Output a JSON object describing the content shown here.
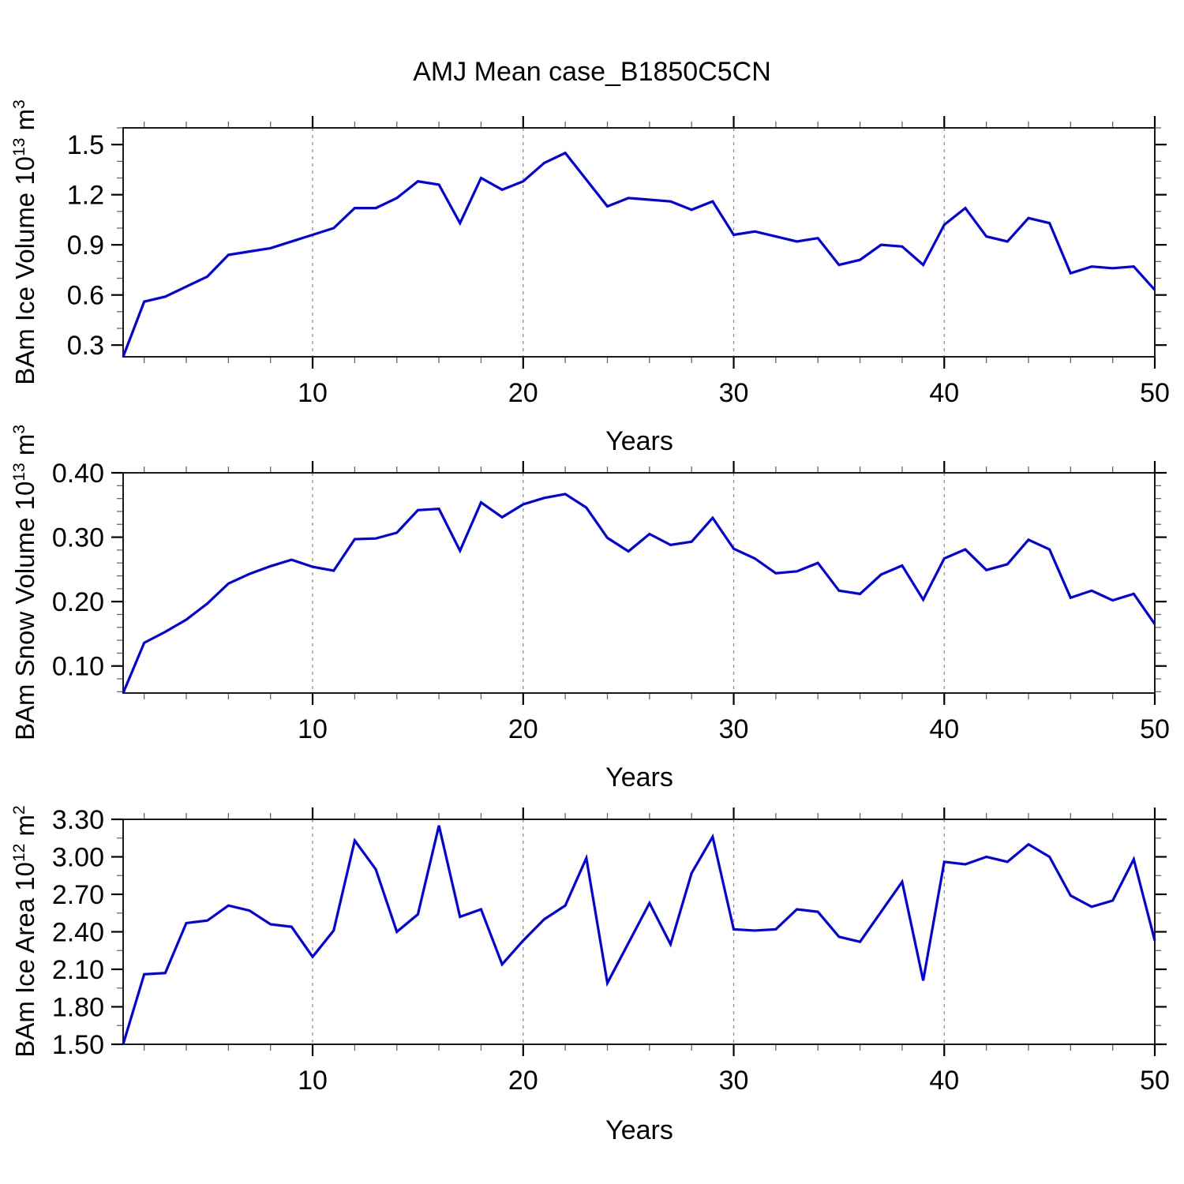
{
  "title": "AMJ Mean case_B1850C5CN",
  "line_color": "#0000e8",
  "grid_color": "#909090",
  "frame_color": "#1a1a1a",
  "chart_data": [
    {
      "type": "line",
      "name": "ice-volume",
      "ylabel": {
        "text1": "BAm Ice Volume 10",
        "sup1": "13",
        "text2": " m",
        "sup2": "3"
      },
      "ylabel_plain": "BAm Ice Volume 10^13 m^3",
      "xlabel": "Years",
      "xlim": [
        1,
        50
      ],
      "xticks": [
        10,
        20,
        30,
        40,
        50
      ],
      "xtick_labels": [
        "10",
        "20",
        "30",
        "40",
        "50"
      ],
      "x_minor_step": 2,
      "grid_x": [
        10,
        20,
        30,
        40
      ],
      "ylim": [
        0.23,
        1.6
      ],
      "yticks": [
        0.3,
        0.6,
        0.9,
        1.2,
        1.5
      ],
      "ytick_labels": [
        "0.3",
        "0.6",
        "0.9",
        "1.2",
        "1.5"
      ],
      "y_minor_step": 0.1,
      "x_years": "1 to 50, step 1",
      "values": [
        0.23,
        0.56,
        0.59,
        0.65,
        0.71,
        0.84,
        0.86,
        0.88,
        0.92,
        0.96,
        1.0,
        1.12,
        1.12,
        1.18,
        1.28,
        1.26,
        1.03,
        1.3,
        1.23,
        1.28,
        1.39,
        1.45,
        1.29,
        1.13,
        1.18,
        1.17,
        1.16,
        1.11,
        1.16,
        0.96,
        0.98,
        0.95,
        0.92,
        0.94,
        0.78,
        0.81,
        0.9,
        0.89,
        0.78,
        1.02,
        1.12,
        0.95,
        0.92,
        1.06,
        1.03,
        0.73,
        0.77,
        0.76,
        0.77,
        0.63
      ]
    },
    {
      "type": "line",
      "name": "snow-volume",
      "ylabel": {
        "text1": "BAm Snow Volume 10",
        "sup1": "13",
        "text2": " m",
        "sup2": "3"
      },
      "ylabel_plain": "BAm Snow Volume 10^13 m^3",
      "xlabel": "Years",
      "xlim": [
        1,
        50
      ],
      "xticks": [
        10,
        20,
        30,
        40,
        50
      ],
      "xtick_labels": [
        "10",
        "20",
        "30",
        "40",
        "50"
      ],
      "x_minor_step": 2,
      "grid_x": [
        10,
        20,
        30,
        40
      ],
      "ylim": [
        0.058,
        0.4
      ],
      "yticks": [
        0.1,
        0.2,
        0.3,
        0.4
      ],
      "ytick_labels": [
        "0.10",
        "0.20",
        "0.30",
        "0.40"
      ],
      "y_minor_step": 0.02,
      "x_years": "1 to 50, step 1",
      "values": [
        0.058,
        0.136,
        0.153,
        0.172,
        0.197,
        0.228,
        0.243,
        0.255,
        0.265,
        0.254,
        0.248,
        0.297,
        0.298,
        0.307,
        0.342,
        0.344,
        0.279,
        0.354,
        0.331,
        0.351,
        0.361,
        0.367,
        0.346,
        0.299,
        0.278,
        0.305,
        0.288,
        0.293,
        0.33,
        0.282,
        0.267,
        0.244,
        0.247,
        0.26,
        0.217,
        0.212,
        0.242,
        0.256,
        0.203,
        0.267,
        0.281,
        0.249,
        0.258,
        0.296,
        0.281,
        0.206,
        0.217,
        0.202,
        0.212,
        0.165
      ]
    },
    {
      "type": "line",
      "name": "ice-area",
      "ylabel": {
        "text1": "BAm Ice Area 10",
        "sup1": "12",
        "text2": " m",
        "sup2": "2"
      },
      "ylabel_plain": "BAm Ice Area 10^12 m^2",
      "xlabel": "Years",
      "xlim": [
        1,
        50
      ],
      "xticks": [
        10,
        20,
        30,
        40,
        50
      ],
      "xtick_labels": [
        "10",
        "20",
        "30",
        "40",
        "50"
      ],
      "x_minor_step": 2,
      "grid_x": [
        10,
        20,
        30,
        40
      ],
      "ylim": [
        1.5,
        3.3
      ],
      "yticks": [
        1.5,
        1.8,
        2.1,
        2.4,
        2.7,
        3.0,
        3.3
      ],
      "ytick_labels": [
        "1.50",
        "1.80",
        "2.10",
        "2.40",
        "2.70",
        "3.00",
        "3.30"
      ],
      "y_minor_step": 0.15,
      "x_years": "1 to 50, step 1",
      "values": [
        1.5,
        2.06,
        2.07,
        2.47,
        2.49,
        2.61,
        2.57,
        2.46,
        2.44,
        2.2,
        2.41,
        3.13,
        2.9,
        2.4,
        2.54,
        3.25,
        2.52,
        2.58,
        2.14,
        2.33,
        2.5,
        2.61,
        2.99,
        1.99,
        2.31,
        2.63,
        2.3,
        2.87,
        3.16,
        2.42,
        2.41,
        2.42,
        2.58,
        2.56,
        2.36,
        2.32,
        2.56,
        2.8,
        2.01,
        2.96,
        2.94,
        3.0,
        2.96,
        3.1,
        3.0,
        2.69,
        2.6,
        2.65,
        2.98,
        2.33
      ]
    }
  ]
}
